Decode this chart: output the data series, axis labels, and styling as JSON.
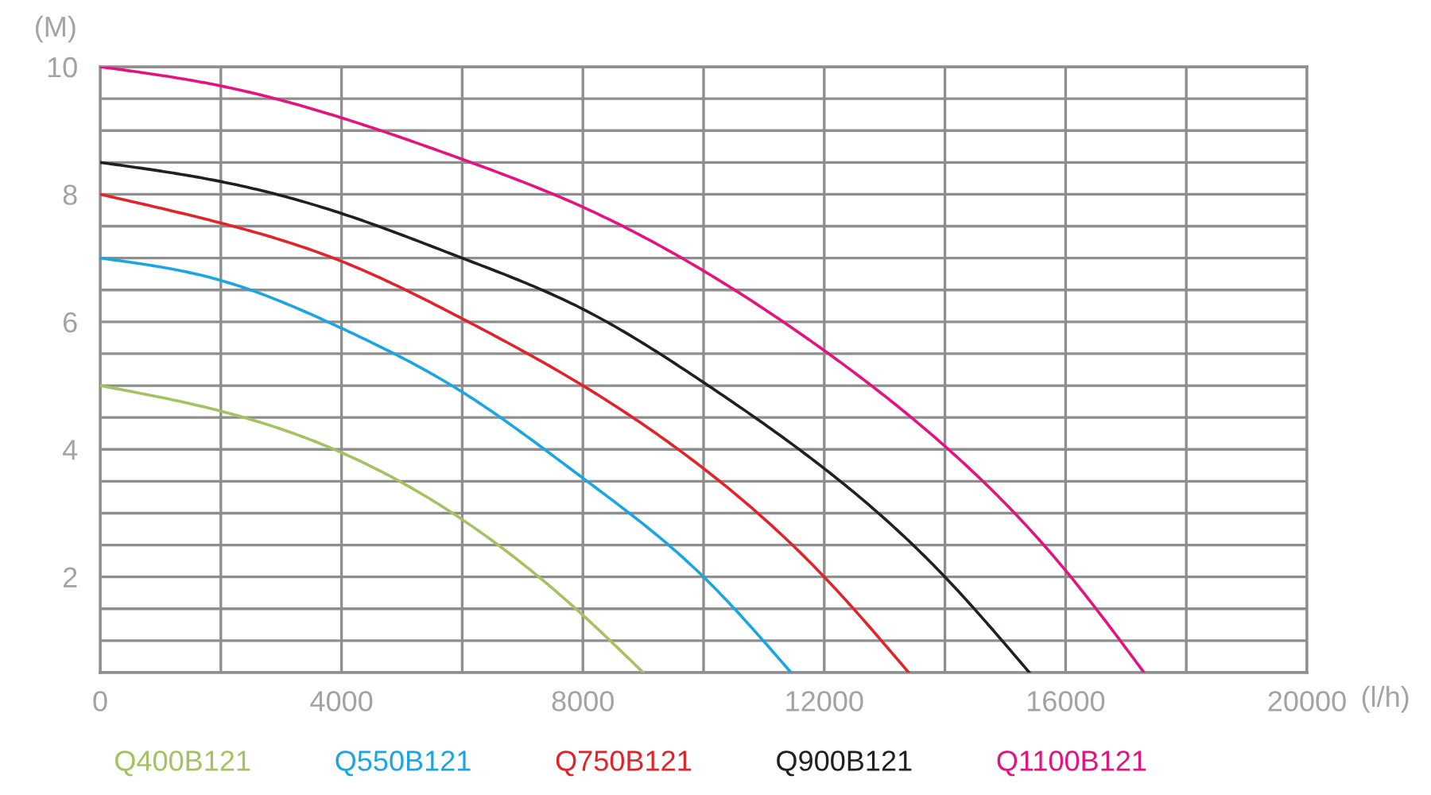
{
  "chart_data": {
    "type": "line",
    "xlabel": "(l/h)",
    "ylabel": "(M)",
    "xlim": [
      0,
      20000
    ],
    "ylim": [
      0.5,
      10
    ],
    "xticks": [
      0,
      {
        "value": 2000,
        "label": null
      },
      4000,
      {
        "value": 6000,
        "label": null
      },
      8000,
      {
        "value": 10000,
        "label": null
      },
      12000,
      {
        "value": 14000,
        "label": null
      },
      16000,
      {
        "value": 18000,
        "label": null
      },
      20000
    ],
    "yticks": [
      {
        "value": 0.5,
        "label": null
      },
      {
        "value": 1,
        "label": null
      },
      {
        "value": 1.5,
        "label": null
      },
      2,
      {
        "value": 2.5,
        "label": null
      },
      {
        "value": 3,
        "label": null
      },
      {
        "value": 3.5,
        "label": null
      },
      4,
      {
        "value": 4.5,
        "label": null
      },
      {
        "value": 5,
        "label": null
      },
      {
        "value": 5.5,
        "label": null
      },
      6,
      {
        "value": 6.5,
        "label": null
      },
      {
        "value": 7,
        "label": null
      },
      {
        "value": 7.5,
        "label": null
      },
      8,
      {
        "value": 8.5,
        "label": null
      },
      {
        "value": 9,
        "label": null
      },
      {
        "value": 9.5,
        "label": null
      },
      10
    ],
    "grid": true,
    "legend": "bottom",
    "series": [
      {
        "name": "Q400B121",
        "color": "#a5c261",
        "x": [
          0,
          2000,
          4000,
          6000,
          8000,
          9000
        ],
        "values": [
          5.0,
          4.6,
          3.95,
          2.9,
          1.4,
          0.5
        ]
      },
      {
        "name": "Q550B121",
        "color": "#1ba5e3",
        "x": [
          0,
          2000,
          4000,
          6000,
          8000,
          10000,
          11450
        ],
        "values": [
          7.0,
          6.65,
          5.9,
          4.9,
          3.55,
          2.0,
          0.5
        ]
      },
      {
        "name": "Q750B121",
        "color": "#e2232a",
        "x": [
          0,
          2000,
          4000,
          6000,
          8000,
          10000,
          12000,
          13400
        ],
        "values": [
          8.0,
          7.55,
          6.95,
          6.05,
          5.0,
          3.7,
          2.0,
          0.5
        ]
      },
      {
        "name": "Q900B121",
        "color": "#231f20",
        "x": [
          0,
          2000,
          4000,
          6000,
          8000,
          10000,
          12000,
          14000,
          15400
        ],
        "values": [
          8.5,
          8.2,
          7.7,
          7.0,
          6.2,
          5.05,
          3.7,
          2.0,
          0.5
        ]
      },
      {
        "name": "Q1100B121",
        "color": "#e5127f",
        "x": [
          0,
          2000,
          4000,
          6000,
          8000,
          10000,
          12000,
          14000,
          16000,
          17300
        ],
        "values": [
          10.0,
          9.7,
          9.2,
          8.55,
          7.8,
          6.8,
          5.55,
          4.05,
          2.1,
          0.5
        ]
      }
    ]
  }
}
